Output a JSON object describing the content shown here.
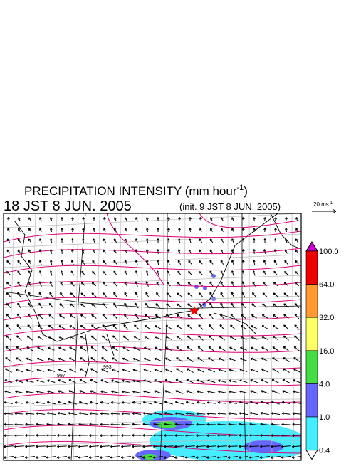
{
  "header": {
    "title": "PRECIPITATION INTENSITY (mm hour",
    "title_unit_exponent": "-1",
    "title_close": ")",
    "valid_time": "18 JST 8 JUN. 2005",
    "init_time": "(init. 9 JST 8 JUN. 2005)"
  },
  "reference_vector": {
    "label": "20 ms",
    "exponent": "-1"
  },
  "colorbar": {
    "over_color": "#cc00cc",
    "under_color": "#ffffff",
    "levels": [
      {
        "label": "100.0",
        "color": "#ee0000"
      },
      {
        "label": "64.0",
        "color": "#ff9933"
      },
      {
        "label": "32.0",
        "color": "#ffff66"
      },
      {
        "label": "16.0",
        "color": "#44dd44"
      },
      {
        "label": "4.0",
        "color": "#6666ff"
      },
      {
        "label": "1.0",
        "color": "#44eeff"
      },
      {
        "label": "0.4",
        "color": null
      }
    ]
  },
  "contour_labels": [
    "997",
    "993"
  ]
}
